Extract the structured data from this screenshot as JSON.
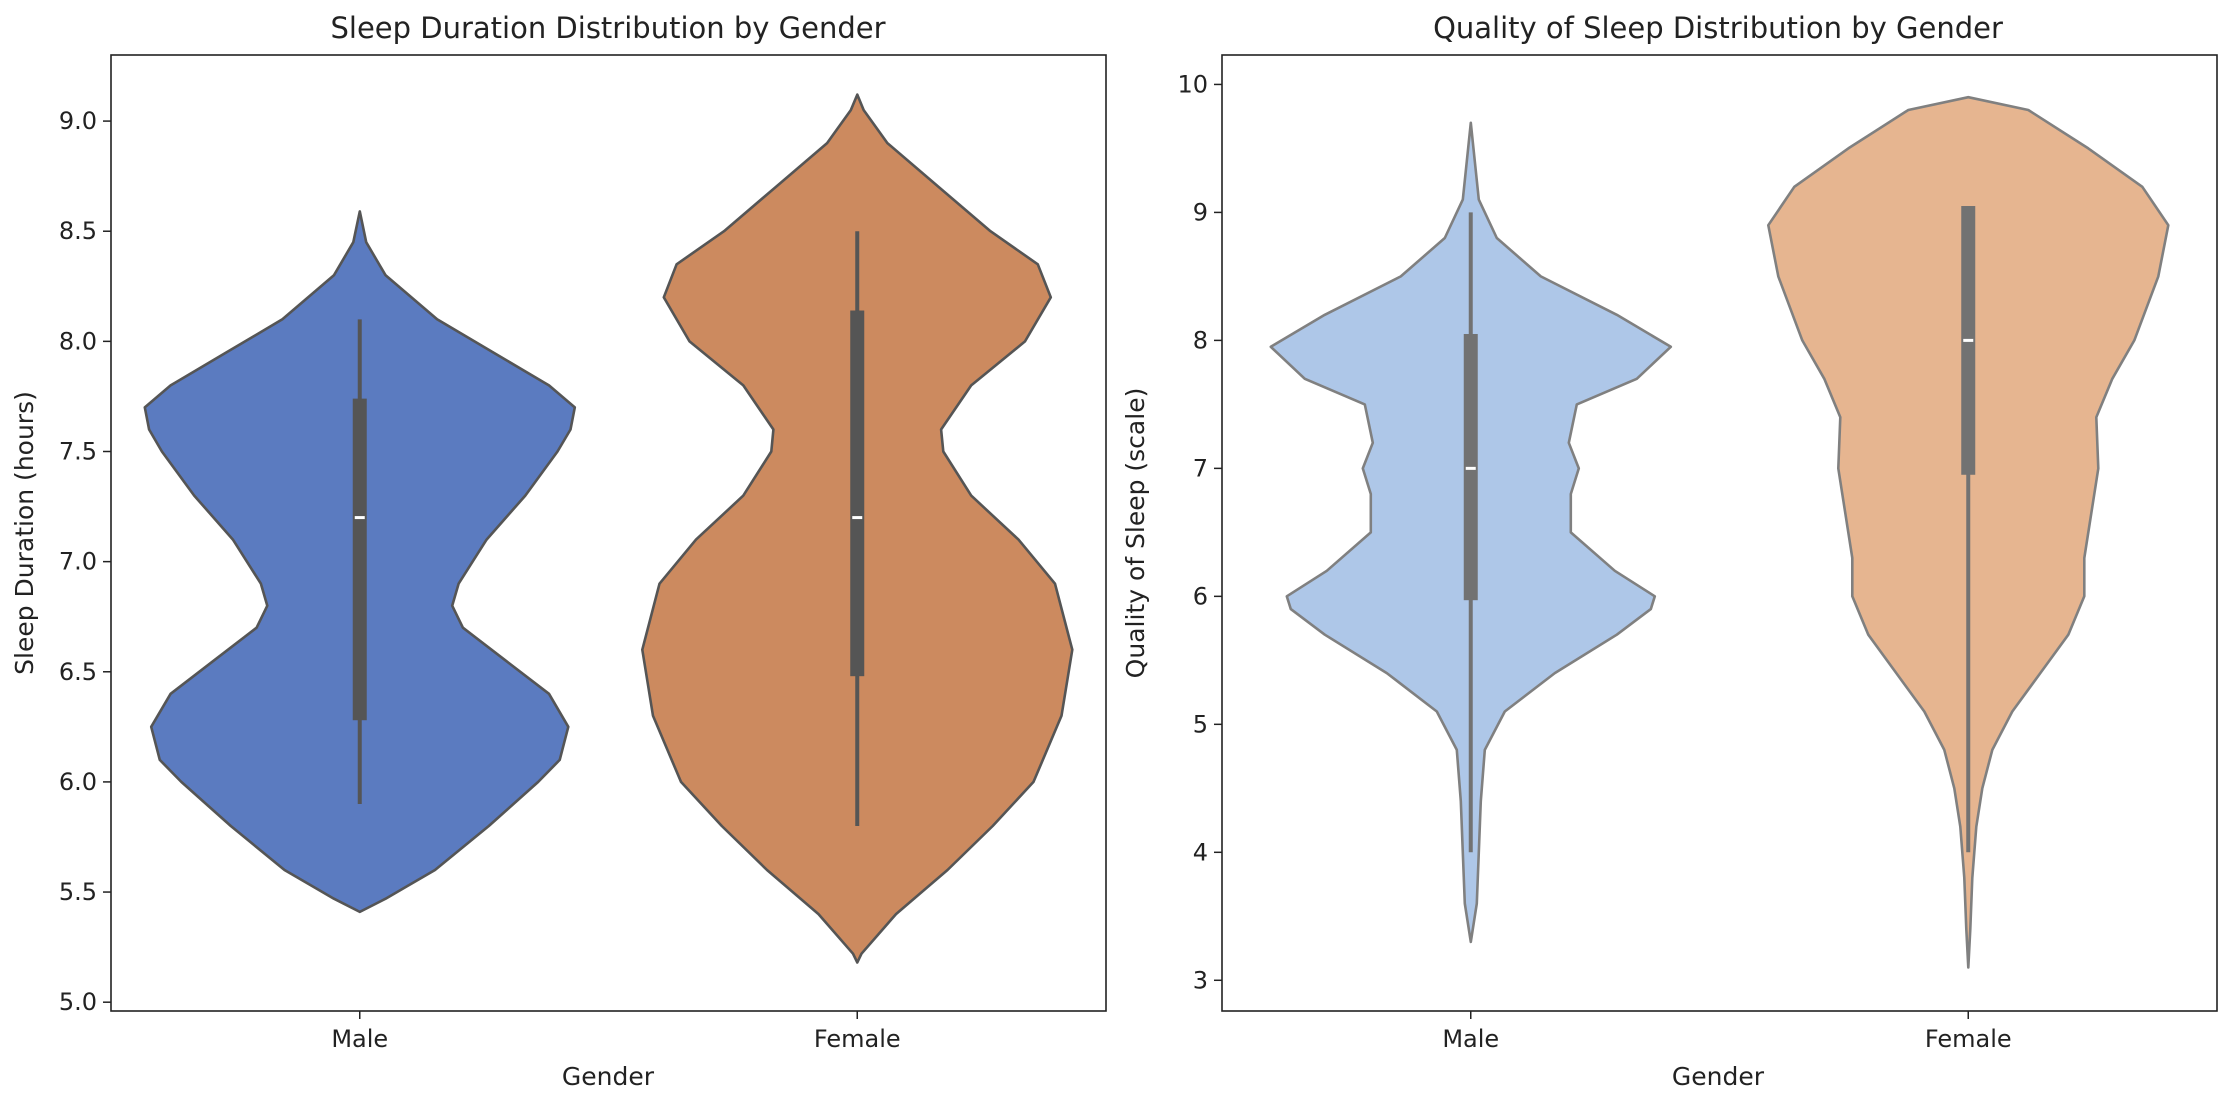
{
  "chart_data": [
    {
      "type": "violin",
      "title": "Sleep Duration Distribution by Gender",
      "xlabel": "Gender",
      "ylabel": "Sleep Duration (hours)",
      "ylim": [
        4.96,
        9.3
      ],
      "yticks": [
        5.0,
        5.5,
        6.0,
        6.5,
        7.0,
        7.5,
        8.0,
        8.5,
        9.0
      ],
      "ytick_labels": [
        "5.0",
        "5.5",
        "6.0",
        "6.5",
        "7.0",
        "7.5",
        "8.0",
        "8.5",
        "9.0"
      ],
      "categories": [
        "Male",
        "Female"
      ],
      "series": [
        {
          "name": "Male",
          "color": "#5b7bc0",
          "q1": 6.28,
          "median": 7.2,
          "q3": 7.74,
          "whisker_low": 5.9,
          "whisker_high": 8.1,
          "density": [
            [
              5.41,
              0.0
            ],
            [
              5.47,
              0.12
            ],
            [
              5.6,
              0.35
            ],
            [
              5.8,
              0.6
            ],
            [
              6.0,
              0.83
            ],
            [
              6.1,
              0.93
            ],
            [
              6.25,
              0.97
            ],
            [
              6.4,
              0.88
            ],
            [
              6.55,
              0.68
            ],
            [
              6.7,
              0.48
            ],
            [
              6.8,
              0.43
            ],
            [
              6.9,
              0.46
            ],
            [
              7.1,
              0.59
            ],
            [
              7.3,
              0.77
            ],
            [
              7.5,
              0.92
            ],
            [
              7.6,
              0.98
            ],
            [
              7.7,
              1.0
            ],
            [
              7.8,
              0.88
            ],
            [
              7.95,
              0.62
            ],
            [
              8.1,
              0.36
            ],
            [
              8.3,
              0.12
            ],
            [
              8.45,
              0.03
            ],
            [
              8.59,
              0.0
            ]
          ]
        },
        {
          "name": "Female",
          "color": "#cc8a5f",
          "q1": 6.48,
          "median": 7.2,
          "q3": 8.14,
          "whisker_low": 5.8,
          "whisker_high": 8.5,
          "density": [
            [
              5.18,
              0.0
            ],
            [
              5.22,
              0.02
            ],
            [
              5.4,
              0.18
            ],
            [
              5.6,
              0.42
            ],
            [
              5.8,
              0.63
            ],
            [
              6.0,
              0.82
            ],
            [
              6.3,
              0.95
            ],
            [
              6.6,
              1.0
            ],
            [
              6.9,
              0.92
            ],
            [
              7.1,
              0.75
            ],
            [
              7.3,
              0.53
            ],
            [
              7.5,
              0.4
            ],
            [
              7.6,
              0.39
            ],
            [
              7.8,
              0.53
            ],
            [
              8.0,
              0.78
            ],
            [
              8.2,
              0.9
            ],
            [
              8.35,
              0.84
            ],
            [
              8.5,
              0.62
            ],
            [
              8.7,
              0.38
            ],
            [
              8.9,
              0.14
            ],
            [
              9.05,
              0.03
            ],
            [
              9.12,
              0.0
            ]
          ]
        }
      ]
    },
    {
      "type": "violin",
      "title": "Quality of Sleep Distribution by Gender",
      "xlabel": "Gender",
      "ylabel": "Quality of Sleep (scale)",
      "ylim": [
        2.76,
        10.23
      ],
      "yticks": [
        3,
        4,
        5,
        6,
        7,
        8,
        9,
        10
      ],
      "ytick_labels": [
        "3",
        "4",
        "5",
        "6",
        "7",
        "8",
        "9",
        "10"
      ],
      "categories": [
        "Male",
        "Female"
      ],
      "series": [
        {
          "name": "Male",
          "color": "#aec7e8",
          "q1": 5.97,
          "median": 7.0,
          "q3": 8.05,
          "whisker_low": 4.0,
          "whisker_high": 9.0,
          "density": [
            [
              3.3,
              0.0
            ],
            [
              3.6,
              0.03
            ],
            [
              4.0,
              0.04
            ],
            [
              4.4,
              0.05
            ],
            [
              4.8,
              0.07
            ],
            [
              5.1,
              0.17
            ],
            [
              5.4,
              0.42
            ],
            [
              5.7,
              0.73
            ],
            [
              5.9,
              0.9
            ],
            [
              6.0,
              0.92
            ],
            [
              6.2,
              0.72
            ],
            [
              6.5,
              0.5
            ],
            [
              6.8,
              0.5
            ],
            [
              7.0,
              0.54
            ],
            [
              7.2,
              0.49
            ],
            [
              7.5,
              0.53
            ],
            [
              7.7,
              0.83
            ],
            [
              7.95,
              1.0
            ],
            [
              8.2,
              0.73
            ],
            [
              8.5,
              0.35
            ],
            [
              8.8,
              0.13
            ],
            [
              9.1,
              0.04
            ],
            [
              9.4,
              0.02
            ],
            [
              9.7,
              0.0
            ]
          ]
        },
        {
          "name": "Female",
          "color": "#e6b590",
          "q1": 6.95,
          "median": 8.0,
          "q3": 9.05,
          "whisker_low": 4.0,
          "whisker_high": 9.05,
          "density": [
            [
              3.1,
              0.0
            ],
            [
              3.4,
              0.01
            ],
            [
              3.8,
              0.02
            ],
            [
              4.2,
              0.04
            ],
            [
              4.5,
              0.07
            ],
            [
              4.8,
              0.12
            ],
            [
              5.1,
              0.22
            ],
            [
              5.4,
              0.36
            ],
            [
              5.7,
              0.5
            ],
            [
              6.0,
              0.58
            ],
            [
              6.3,
              0.58
            ],
            [
              6.7,
              0.62
            ],
            [
              7.0,
              0.65
            ],
            [
              7.4,
              0.64
            ],
            [
              7.7,
              0.72
            ],
            [
              8.0,
              0.83
            ],
            [
              8.5,
              0.95
            ],
            [
              8.9,
              1.0
            ],
            [
              9.2,
              0.87
            ],
            [
              9.5,
              0.6
            ],
            [
              9.8,
              0.3
            ],
            [
              9.9,
              0.0
            ]
          ]
        }
      ]
    }
  ]
}
